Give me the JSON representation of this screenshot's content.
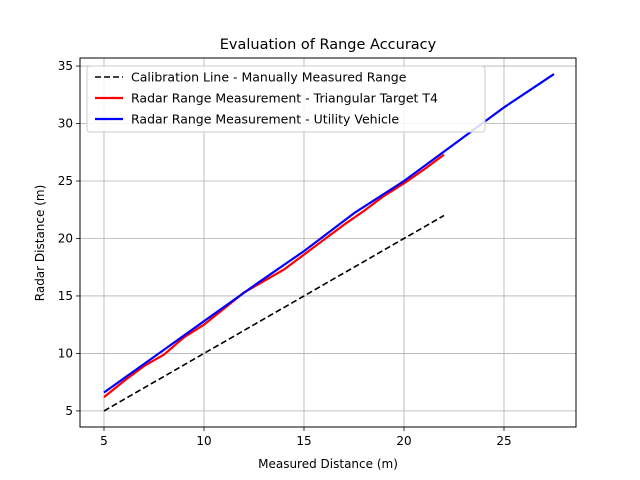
{
  "chart_data": {
    "type": "line",
    "title": "Evaluation of Range Accuracy",
    "xlabel": "Measured Distance (m)",
    "ylabel": "Radar Distance (m)",
    "xlim": [
      3.8,
      28.6
    ],
    "ylim": [
      3.6,
      35.7
    ],
    "xticks": [
      5,
      10,
      15,
      20,
      25
    ],
    "yticks": [
      5,
      10,
      15,
      20,
      25,
      30,
      35
    ],
    "grid": true,
    "legend_position": "top-left",
    "series": [
      {
        "name": "Calibration Line - Manually Measured Range",
        "color": "#000000",
        "dash": true,
        "x": [
          5,
          22
        ],
        "y": [
          5,
          22
        ]
      },
      {
        "name": "Radar Range Measurement - Triangular Target T4",
        "color": "#ff0000",
        "dash": false,
        "x": [
          5,
          6,
          7,
          8,
          9,
          10,
          11,
          12,
          13,
          14,
          15,
          16,
          17,
          18,
          19,
          20,
          21,
          22
        ],
        "y": [
          6.2,
          7.6,
          8.9,
          9.9,
          11.4,
          12.5,
          13.9,
          15.3,
          16.3,
          17.3,
          18.6,
          19.9,
          21.2,
          22.4,
          23.7,
          24.8,
          26.0,
          27.3
        ]
      },
      {
        "name": "Radar Range Measurement - Utility Vehicle",
        "color": "#0000ff",
        "dash": false,
        "x": [
          5,
          7.5,
          10,
          12.5,
          15,
          17.5,
          20,
          22.5,
          25,
          27.5
        ],
        "y": [
          6.6,
          9.7,
          12.8,
          15.9,
          18.9,
          22.2,
          25.0,
          28.2,
          31.4,
          34.3
        ]
      }
    ]
  }
}
